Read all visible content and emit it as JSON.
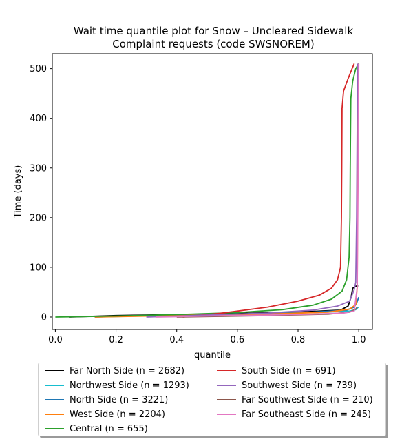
{
  "chart_data": {
    "type": "line",
    "title": "Wait time quantile plot for Snow – Uncleared Sidewalk",
    "subtitle": "Complaint  requests (code SWSNOREM)",
    "xlabel": "quantile",
    "ylabel": "Time (days)",
    "xlim": [
      -0.01,
      1.045
    ],
    "ylim": [
      -25,
      530
    ],
    "xticks": [
      0.0,
      0.2,
      0.4,
      0.6,
      0.8,
      1.0
    ],
    "xtick_labels": [
      "0.0",
      "0.2",
      "0.4",
      "0.6",
      "0.8",
      "1.0"
    ],
    "yticks": [
      0,
      100,
      200,
      300,
      400,
      500
    ],
    "ytick_labels": [
      "0",
      "100",
      "200",
      "300",
      "400",
      "500"
    ],
    "grid": false,
    "legend_placement": "below plot, two columns",
    "series": [
      {
        "name": "Far North Side (n = 2682)",
        "color": "#000000",
        "x": [
          0.045,
          0.2,
          0.5,
          0.8,
          0.94,
          0.965,
          0.975,
          0.98,
          0.99,
          0.998
        ],
        "y": [
          0,
          3,
          6,
          10,
          14,
          22,
          40,
          58,
          62,
          63
        ]
      },
      {
        "name": "Northwest Side (n = 1293)",
        "color": "#17becf",
        "x": [
          0.13,
          0.35,
          0.6,
          0.85,
          0.97,
          0.99,
          0.999
        ],
        "y": [
          0,
          3,
          6,
          9,
          12,
          15,
          20
        ]
      },
      {
        "name": "North Side (n = 3221)",
        "color": "#1f77b4",
        "x": [
          0.13,
          0.3,
          0.6,
          0.85,
          0.96,
          0.985,
          0.993,
          1.0
        ],
        "y": [
          0,
          3,
          6,
          10,
          14,
          20,
          28,
          40
        ]
      },
      {
        "name": "West Side (n = 2204)",
        "color": "#ff7f0e",
        "x": [
          0.13,
          0.4,
          0.7,
          0.9,
          0.97,
          0.99,
          0.995,
          0.997,
          0.999
        ],
        "y": [
          0,
          3,
          6,
          10,
          16,
          25,
          60,
          300,
          510
        ]
      },
      {
        "name": "Central (n = 655)",
        "color": "#2ca02c",
        "x": [
          0.0,
          0.2,
          0.4,
          0.6,
          0.75,
          0.85,
          0.91,
          0.945,
          0.96,
          0.968,
          0.971,
          0.972,
          0.974,
          0.98,
          0.99,
          1.0
        ],
        "y": [
          0,
          2,
          5,
          9,
          15,
          24,
          36,
          52,
          75,
          120,
          200,
          300,
          440,
          475,
          500,
          510
        ]
      },
      {
        "name": "South Side (n = 691)",
        "color": "#d62728",
        "x": [
          0.42,
          0.55,
          0.7,
          0.8,
          0.87,
          0.91,
          0.93,
          0.94,
          0.943,
          0.944,
          0.945,
          0.95,
          0.965,
          0.978,
          0.985
        ],
        "y": [
          0,
          8,
          20,
          32,
          44,
          58,
          75,
          100,
          200,
          300,
          420,
          455,
          480,
          500,
          510
        ]
      },
      {
        "name": "Southwest Side (n = 739)",
        "color": "#9467bd",
        "x": [
          0.3,
          0.5,
          0.7,
          0.85,
          0.93,
          0.97,
          0.985,
          0.99,
          0.993,
          0.995,
          0.997
        ],
        "y": [
          0,
          4,
          8,
          14,
          22,
          32,
          55,
          70,
          200,
          400,
          510
        ]
      },
      {
        "name": "Far Southwest Side (n = 210)",
        "color": "#8c564b",
        "x": [
          0.4,
          0.7,
          0.9,
          0.97,
          0.99,
          0.995
        ],
        "y": [
          0,
          3,
          6,
          10,
          16,
          20
        ]
      },
      {
        "name": "Far Southeast Side (n = 245)",
        "color": "#e377c2",
        "x": [
          0.33,
          0.5,
          0.7,
          0.85,
          0.95,
          0.985,
          0.995,
          0.998,
          1.0
        ],
        "y": [
          0,
          2,
          4,
          6,
          8,
          12,
          60,
          300,
          510
        ]
      }
    ]
  }
}
